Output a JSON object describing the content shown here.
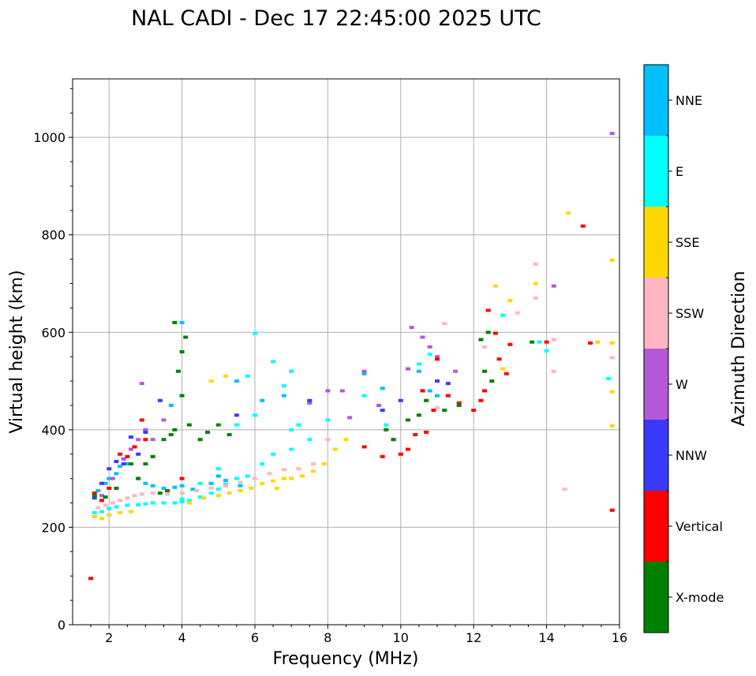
{
  "chart_data": {
    "type": "scatter",
    "title": "NAL CADI - Dec 17 22:45:00 2025 UTC",
    "xlabel": "Frequency (MHz)",
    "ylabel": "Virtual height (km)",
    "xlim": [
      1.0,
      16.0
    ],
    "ylim": [
      0,
      1120
    ],
    "xticks": [
      "2",
      "4",
      "6",
      "8",
      "10",
      "12",
      "14",
      "16"
    ],
    "yticks": [
      "0",
      "200",
      "400",
      "600",
      "800",
      "1000"
    ],
    "grid": true,
    "colorbar": {
      "label": "Azimuth Direction",
      "categories": [
        {
          "name": "X-mode",
          "color": "#008000"
        },
        {
          "name": "Vertical",
          "color": "#ff0000"
        },
        {
          "name": "NNW",
          "color": "#3a3aff"
        },
        {
          "name": "W",
          "color": "#b558d8"
        },
        {
          "name": "SSW",
          "color": "#ffb6c1"
        },
        {
          "name": "SSE",
          "color": "#ffd700"
        },
        {
          "name": "E",
          "color": "#00ffff"
        },
        {
          "name": "NNE",
          "color": "#00bfff"
        }
      ]
    },
    "series": [
      {
        "name": "E",
        "points": [
          [
            1.6,
            230
          ],
          [
            1.8,
            232
          ],
          [
            2.0,
            238
          ],
          [
            2.2,
            242
          ],
          [
            2.5,
            245
          ],
          [
            2.8,
            246
          ],
          [
            3.0,
            248
          ],
          [
            3.2,
            250
          ],
          [
            3.5,
            250
          ],
          [
            3.8,
            250
          ],
          [
            4.0,
            252
          ],
          [
            4.2,
            255
          ],
          [
            4.5,
            262
          ],
          [
            4.8,
            270
          ],
          [
            5.0,
            278
          ],
          [
            5.2,
            288
          ],
          [
            5.5,
            300
          ],
          [
            5.8,
            305
          ],
          [
            4.0,
            258
          ],
          [
            4.5,
            290
          ],
          [
            5.0,
            320
          ],
          [
            5.5,
            410
          ],
          [
            6.0,
            430
          ],
          [
            6.2,
            330
          ],
          [
            6.5,
            350
          ],
          [
            7.0,
            360
          ],
          [
            7.0,
            400
          ],
          [
            7.2,
            410
          ],
          [
            7.5,
            380
          ],
          [
            6.5,
            540
          ],
          [
            6.8,
            490
          ],
          [
            7.0,
            520
          ],
          [
            5.8,
            510
          ],
          [
            6.0,
            598
          ],
          [
            7.5,
            455
          ],
          [
            8.0,
            420
          ],
          [
            9.0,
            470
          ],
          [
            9.6,
            410
          ],
          [
            10.5,
            535
          ],
          [
            10.8,
            555
          ],
          [
            12.8,
            635
          ],
          [
            13.8,
            580
          ],
          [
            14.0,
            562
          ],
          [
            15.7,
            505
          ]
        ]
      },
      {
        "name": "NNE",
        "points": [
          [
            1.7,
            275
          ],
          [
            1.9,
            290
          ],
          [
            2.0,
            300
          ],
          [
            2.2,
            310
          ],
          [
            2.3,
            325
          ],
          [
            2.5,
            330
          ],
          [
            2.8,
            300
          ],
          [
            3.0,
            290
          ],
          [
            3.2,
            285
          ],
          [
            3.5,
            280
          ],
          [
            3.8,
            282
          ],
          [
            4.0,
            285
          ],
          [
            4.3,
            278
          ],
          [
            4.8,
            290
          ],
          [
            5.0,
            305
          ],
          [
            5.2,
            296
          ],
          [
            5.6,
            285
          ],
          [
            3.7,
            450
          ],
          [
            4.0,
            620
          ],
          [
            5.5,
            500
          ],
          [
            6.2,
            460
          ],
          [
            6.8,
            470
          ],
          [
            9.0,
            515
          ],
          [
            9.5,
            485
          ],
          [
            10.5,
            520
          ],
          [
            10.8,
            480
          ],
          [
            11.0,
            470
          ]
        ]
      },
      {
        "name": "SSE",
        "points": [
          [
            1.6,
            222
          ],
          [
            1.8,
            218
          ],
          [
            2.0,
            225
          ],
          [
            2.3,
            230
          ],
          [
            2.6,
            232
          ],
          [
            4.2,
            250
          ],
          [
            4.6,
            260
          ],
          [
            5.0,
            265
          ],
          [
            5.3,
            270
          ],
          [
            5.6,
            275
          ],
          [
            5.9,
            280
          ],
          [
            6.2,
            290
          ],
          [
            6.5,
            295
          ],
          [
            6.6,
            280
          ],
          [
            6.8,
            300
          ],
          [
            7.0,
            300
          ],
          [
            7.3,
            305
          ],
          [
            7.6,
            315
          ],
          [
            7.9,
            330
          ],
          [
            8.2,
            360
          ],
          [
            8.5,
            380
          ],
          [
            4.8,
            500
          ],
          [
            5.2,
            510
          ],
          [
            12.6,
            695
          ],
          [
            13.0,
            665
          ],
          [
            12.8,
            525
          ],
          [
            13.7,
            700
          ],
          [
            14.6,
            845
          ],
          [
            15.4,
            580
          ],
          [
            15.8,
            578
          ],
          [
            15.8,
            478
          ],
          [
            15.8,
            408
          ],
          [
            15.8,
            748
          ]
        ]
      },
      {
        "name": "SSW",
        "points": [
          [
            1.7,
            240
          ],
          [
            1.9,
            245
          ],
          [
            2.1,
            250
          ],
          [
            2.3,
            255
          ],
          [
            2.5,
            260
          ],
          [
            2.7,
            265
          ],
          [
            2.9,
            268
          ],
          [
            3.2,
            270
          ],
          [
            3.6,
            268
          ],
          [
            4.0,
            270
          ],
          [
            4.4,
            275
          ],
          [
            4.8,
            280
          ],
          [
            5.2,
            285
          ],
          [
            5.6,
            292
          ],
          [
            6.0,
            300
          ],
          [
            6.4,
            310
          ],
          [
            6.8,
            318
          ],
          [
            7.2,
            320
          ],
          [
            7.6,
            330
          ],
          [
            8.0,
            380
          ],
          [
            11.0,
            445
          ],
          [
            11.2,
            618
          ],
          [
            12.3,
            570
          ],
          [
            13.2,
            640
          ],
          [
            13.7,
            670
          ],
          [
            13.7,
            740
          ],
          [
            14.2,
            585
          ],
          [
            14.2,
            520
          ],
          [
            14.5,
            278
          ],
          [
            15.8,
            548
          ]
        ]
      },
      {
        "name": "W",
        "points": [
          [
            1.8,
            265
          ],
          [
            2.1,
            300
          ],
          [
            2.4,
            340
          ],
          [
            2.6,
            360
          ],
          [
            2.8,
            380
          ],
          [
            3.0,
            400
          ],
          [
            3.2,
            380
          ],
          [
            3.5,
            420
          ],
          [
            2.9,
            495
          ],
          [
            7.5,
            455
          ],
          [
            8.0,
            480
          ],
          [
            8.4,
            480
          ],
          [
            8.6,
            425
          ],
          [
            9.0,
            520
          ],
          [
            9.4,
            450
          ],
          [
            10.2,
            525
          ],
          [
            10.3,
            610
          ],
          [
            10.6,
            590
          ],
          [
            10.8,
            570
          ],
          [
            11.0,
            550
          ],
          [
            11.5,
            520
          ],
          [
            14.2,
            695
          ],
          [
            15.8,
            1008
          ]
        ]
      },
      {
        "name": "NNW",
        "points": [
          [
            1.6,
            260
          ],
          [
            1.8,
            290
          ],
          [
            2.0,
            320
          ],
          [
            2.2,
            335
          ],
          [
            2.4,
            330
          ],
          [
            2.6,
            385
          ],
          [
            2.8,
            350
          ],
          [
            3.0,
            395
          ],
          [
            3.4,
            460
          ],
          [
            5.5,
            430
          ],
          [
            7.5,
            460
          ],
          [
            9.5,
            440
          ],
          [
            10.0,
            460
          ],
          [
            10.6,
            480
          ],
          [
            11.0,
            500
          ],
          [
            11.3,
            495
          ]
        ]
      },
      {
        "name": "Vertical",
        "points": [
          [
            1.5,
            95
          ],
          [
            1.6,
            270
          ],
          [
            1.8,
            255
          ],
          [
            2.0,
            280
          ],
          [
            2.3,
            350
          ],
          [
            2.5,
            345
          ],
          [
            2.7,
            365
          ],
          [
            2.9,
            420
          ],
          [
            3.0,
            380
          ],
          [
            4.0,
            300
          ],
          [
            9.0,
            365
          ],
          [
            9.5,
            345
          ],
          [
            9.8,
            380
          ],
          [
            10.0,
            350
          ],
          [
            10.2,
            360
          ],
          [
            10.4,
            390
          ],
          [
            10.6,
            480
          ],
          [
            10.7,
            395
          ],
          [
            10.9,
            440
          ],
          [
            11.0,
            545
          ],
          [
            11.3,
            470
          ],
          [
            11.6,
            455
          ],
          [
            12.0,
            440
          ],
          [
            12.2,
            460
          ],
          [
            12.3,
            480
          ],
          [
            12.4,
            645
          ],
          [
            12.6,
            598
          ],
          [
            12.7,
            545
          ],
          [
            12.9,
            515
          ],
          [
            13.0,
            575
          ],
          [
            14.0,
            580
          ],
          [
            15.0,
            818
          ],
          [
            15.2,
            578
          ],
          [
            15.8,
            235
          ]
        ]
      },
      {
        "name": "X-mode",
        "points": [
          [
            1.6,
            265
          ],
          [
            1.9,
            262
          ],
          [
            2.2,
            280
          ],
          [
            2.6,
            330
          ],
          [
            2.8,
            300
          ],
          [
            3.0,
            330
          ],
          [
            3.2,
            345
          ],
          [
            3.5,
            380
          ],
          [
            3.7,
            390
          ],
          [
            3.8,
            400
          ],
          [
            4.0,
            470
          ],
          [
            4.0,
            560
          ],
          [
            4.1,
            590
          ],
          [
            3.8,
            620
          ],
          [
            3.9,
            520
          ],
          [
            4.2,
            410
          ],
          [
            4.5,
            380
          ],
          [
            4.7,
            395
          ],
          [
            5.0,
            410
          ],
          [
            5.3,
            390
          ],
          [
            3.4,
            270
          ],
          [
            3.6,
            275
          ],
          [
            9.6,
            400
          ],
          [
            9.8,
            380
          ],
          [
            10.2,
            420
          ],
          [
            10.5,
            430
          ],
          [
            10.7,
            460
          ],
          [
            11.2,
            440
          ],
          [
            11.6,
            450
          ],
          [
            12.2,
            585
          ],
          [
            12.4,
            600
          ],
          [
            12.3,
            520
          ],
          [
            12.5,
            500
          ],
          [
            13.6,
            580
          ]
        ]
      }
    ]
  }
}
